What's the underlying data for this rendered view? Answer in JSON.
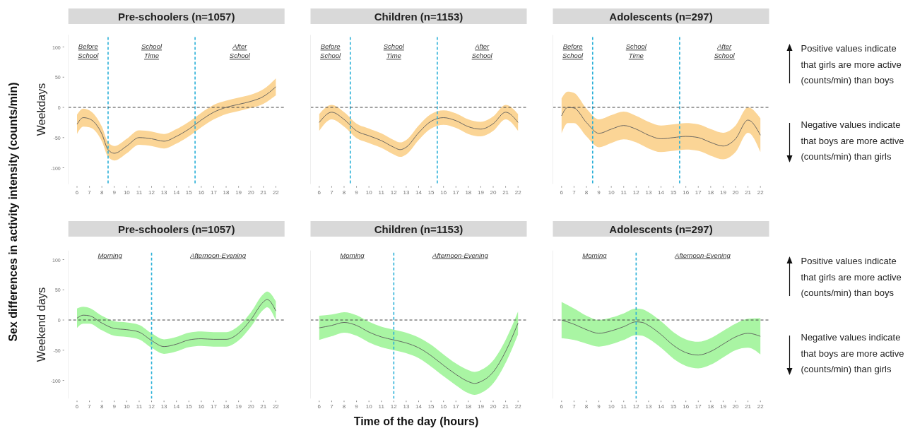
{
  "chart_data": [
    {
      "type": "line",
      "title": "Pre-schoolers (n=1057)",
      "ylabel": "Weekdays",
      "xlim": [
        5.3,
        22.7
      ],
      "ylim": [
        -127,
        120
      ],
      "xticks": [
        6,
        7,
        8,
        9,
        10,
        11,
        12,
        13,
        14,
        15,
        16,
        17,
        18,
        19,
        20,
        21,
        22
      ],
      "yticks": [
        100,
        50,
        0,
        -50,
        -100
      ],
      "x": [
        6,
        6.5,
        7,
        8,
        8.5,
        9,
        10,
        11,
        12,
        13,
        14,
        15,
        16,
        17,
        18,
        19,
        20,
        21,
        22
      ],
      "series": [
        {
          "color": "#5a5a5a",
          "values": [
            -28,
            -17,
            -19,
            -44,
            -70,
            -76,
            -64,
            -50,
            -52,
            -56,
            -48,
            -36,
            -21,
            -8,
            0,
            5,
            10,
            18,
            34
          ],
          "lower": [
            -44,
            -32,
            -33,
            -56,
            -82,
            -88,
            -76,
            -62,
            -64,
            -68,
            -60,
            -48,
            -33,
            -20,
            -11,
            -6,
            -1,
            6,
            20
          ],
          "upper": [
            -12,
            -2,
            -5,
            -32,
            -58,
            -64,
            -52,
            -38,
            -40,
            -44,
            -36,
            -24,
            -9,
            4,
            11,
            16,
            21,
            30,
            48
          ]
        }
      ],
      "ref_lines": [
        {
          "axis": "x",
          "value": 8.5,
          "color": "#29b0d8",
          "line_style": "dashed"
        },
        {
          "axis": "x",
          "value": 15.5,
          "color": "#29b0d8",
          "line_style": "dashed"
        },
        {
          "axis": "y",
          "value": 0,
          "color": "#444444",
          "line_style": "dashed"
        }
      ],
      "annotations": [
        "Before School",
        "School Time",
        "After School",
        "Sex differences in activity intensity (counts/min)",
        "Time of the day (hours)"
      ]
    },
    {
      "type": "line",
      "title": "Children (n=1153)",
      "xlim": [
        5.3,
        22.7
      ],
      "ylim": [
        -127,
        120
      ],
      "xticks": [
        6,
        7,
        8,
        9,
        10,
        11,
        12,
        13,
        14,
        15,
        16,
        17,
        18,
        19,
        20,
        21,
        22
      ],
      "tick_labels": "x",
      "x": [
        6,
        7,
        8,
        9,
        10,
        11,
        12,
        12.5,
        13,
        14,
        15,
        16,
        17,
        18,
        19,
        20,
        21,
        22
      ],
      "series": [
        {
          "color": "#5a5a5a",
          "values": [
            -25,
            -8,
            -20,
            -39,
            -47,
            -55,
            -66,
            -70,
            -66,
            -42,
            -23,
            -17,
            -22,
            -32,
            -36,
            -27,
            -8,
            -25
          ],
          "lower": [
            -39,
            -20,
            -32,
            -51,
            -59,
            -67,
            -78,
            -82,
            -78,
            -54,
            -35,
            -29,
            -34,
            -44,
            -48,
            -39,
            -20,
            -39
          ],
          "upper": [
            -11,
            4,
            -8,
            -27,
            -35,
            -43,
            -54,
            -58,
            -54,
            -30,
            -11,
            -5,
            -10,
            -20,
            -24,
            -15,
            4,
            -11
          ]
        }
      ],
      "ref_lines": [
        {
          "axis": "x",
          "value": 8.5,
          "color": "#29b0d8",
          "line_style": "dashed"
        },
        {
          "axis": "x",
          "value": 15.5,
          "color": "#29b0d8",
          "line_style": "dashed"
        },
        {
          "axis": "y",
          "value": 0,
          "color": "#444444",
          "line_style": "dashed"
        }
      ],
      "annotations": [
        "Before School",
        "School Time",
        "After School"
      ]
    },
    {
      "type": "line",
      "title": "Adolescents (n=297)",
      "xlim": [
        5.3,
        22.7
      ],
      "ylim": [
        -127,
        120
      ],
      "xticks": [
        6,
        7,
        8,
        9,
        10,
        11,
        12,
        13,
        14,
        15,
        16,
        17,
        18,
        19,
        20,
        21,
        22
      ],
      "tick_labels": "x",
      "x": [
        6,
        6.5,
        7,
        8,
        9,
        10,
        11,
        12,
        13,
        14,
        15,
        16,
        17,
        18,
        19,
        20,
        21,
        22
      ],
      "series": [
        {
          "color": "#5a5a5a",
          "values": [
            -14,
            0,
            -1,
            -25,
            -43,
            -36,
            -30,
            -36,
            -46,
            -52,
            -50,
            -48,
            -50,
            -58,
            -64,
            -52,
            -21,
            -46
          ],
          "lower": [
            -43,
            -26,
            -26,
            -48,
            -66,
            -59,
            -53,
            -58,
            -68,
            -74,
            -72,
            -70,
            -72,
            -80,
            -86,
            -74,
            -42,
            -74
          ],
          "upper": [
            15,
            26,
            24,
            -2,
            -20,
            -13,
            -7,
            -14,
            -24,
            -30,
            -28,
            -26,
            -28,
            -36,
            -42,
            -30,
            0,
            -18
          ]
        }
      ],
      "ref_lines": [
        {
          "axis": "x",
          "value": 8.5,
          "color": "#29b0d8",
          "line_style": "dashed"
        },
        {
          "axis": "x",
          "value": 15.5,
          "color": "#29b0d8",
          "line_style": "dashed"
        },
        {
          "axis": "y",
          "value": 0,
          "color": "#444444",
          "line_style": "dashed"
        }
      ],
      "annotations": [
        "Before School",
        "School Time",
        "After School",
        "Positive values indicate that girls are more active (counts/min) than boys",
        "Negative values indicate that boys are more active (counts/min) than girls"
      ]
    },
    {
      "type": "line",
      "title": "Pre-schoolers (n=1057)",
      "ylabel": "Weekend days",
      "xlim": [
        5.3,
        22.7
      ],
      "ylim": [
        -130,
        115
      ],
      "xticks": [
        6,
        7,
        8,
        9,
        10,
        11,
        12,
        13,
        14,
        15,
        16,
        17,
        18,
        19,
        20,
        21,
        22
      ],
      "yticks": [
        100,
        50,
        0,
        -50,
        -100
      ],
      "x": [
        6,
        6.5,
        7,
        8,
        9,
        10,
        11,
        12,
        13,
        14,
        15,
        16,
        17,
        18,
        19,
        20,
        21,
        21.3,
        22
      ],
      "series": [
        {
          "color": "#5a5a5a",
          "values": [
            3,
            8,
            7,
            -5,
            -14,
            -16,
            -20,
            -34,
            -44,
            -40,
            -33,
            -31,
            -32,
            -32,
            -22,
            1,
            30,
            34,
            15
          ],
          "lower": [
            -13,
            -6,
            -6,
            -17,
            -26,
            -28,
            -32,
            -46,
            -56,
            -52,
            -45,
            -43,
            -44,
            -44,
            -34,
            -11,
            17,
            21,
            -1
          ],
          "upper": [
            19,
            22,
            20,
            7,
            -2,
            -4,
            -8,
            -22,
            -32,
            -28,
            -21,
            -19,
            -20,
            -20,
            -10,
            13,
            43,
            47,
            31
          ]
        }
      ],
      "ref_lines": [
        {
          "axis": "x",
          "value": 12,
          "color": "#29b0d8",
          "line_style": "dashed"
        },
        {
          "axis": "y",
          "value": 0,
          "color": "#444444",
          "line_style": "dashed"
        }
      ],
      "annotations": [
        "Morning",
        "Afternoon-Evening"
      ]
    },
    {
      "type": "line",
      "title": "Children (n=1153)",
      "xlim": [
        5.3,
        22.7
      ],
      "ylim": [
        -130,
        115
      ],
      "xticks": [
        6,
        7,
        8,
        9,
        10,
        11,
        12,
        13,
        14,
        15,
        16,
        17,
        18,
        19,
        20,
        21,
        22
      ],
      "tick_labels": "x",
      "x": [
        6,
        7,
        8,
        9,
        10,
        11,
        12,
        13,
        14,
        15,
        16,
        17,
        18,
        18.5,
        19,
        20,
        21,
        22
      ],
      "series": [
        {
          "color": "#5a5a5a",
          "values": [
            -13,
            -9,
            -4,
            -9,
            -20,
            -28,
            -33,
            -38,
            -46,
            -59,
            -75,
            -90,
            -102,
            -105,
            -102,
            -86,
            -52,
            -5
          ],
          "lower": [
            -33,
            -27,
            -21,
            -26,
            -37,
            -45,
            -50,
            -55,
            -63,
            -77,
            -93,
            -108,
            -121,
            -124,
            -121,
            -105,
            -71,
            -24
          ],
          "upper": [
            7,
            9,
            13,
            8,
            -3,
            -11,
            -16,
            -21,
            -29,
            -41,
            -57,
            -72,
            -83,
            -86,
            -83,
            -67,
            -33,
            14
          ]
        }
      ],
      "ref_lines": [
        {
          "axis": "x",
          "value": 12,
          "color": "#29b0d8",
          "line_style": "dashed"
        },
        {
          "axis": "y",
          "value": 0,
          "color": "#444444",
          "line_style": "dashed"
        }
      ],
      "annotations": [
        "Morning",
        "Afternoon-Evening"
      ]
    },
    {
      "type": "line",
      "title": "Adolescents (n=297)",
      "xlim": [
        5.3,
        22.7
      ],
      "ylim": [
        -130,
        115
      ],
      "xticks": [
        6,
        7,
        8,
        9,
        10,
        11,
        12,
        13,
        14,
        15,
        16,
        17,
        18,
        19,
        20,
        21,
        22
      ],
      "tick_labels": "x",
      "x": [
        6,
        7,
        8,
        9,
        10,
        11,
        12,
        12.5,
        13,
        14,
        15,
        16,
        17,
        18,
        19,
        20,
        21,
        22
      ],
      "series": [
        {
          "color": "#5a5a5a",
          "values": [
            0,
            -7,
            -16,
            -22,
            -18,
            -11,
            -3,
            -4,
            -9,
            -24,
            -42,
            -54,
            -58,
            -52,
            -40,
            -28,
            -22,
            -27
          ],
          "lower": [
            -30,
            -33,
            -39,
            -44,
            -40,
            -33,
            -25,
            -26,
            -31,
            -46,
            -64,
            -76,
            -80,
            -74,
            -62,
            -50,
            -46,
            -57
          ],
          "upper": [
            30,
            19,
            7,
            0,
            4,
            11,
            19,
            18,
            13,
            -2,
            -20,
            -32,
            -36,
            -30,
            -18,
            -6,
            2,
            3
          ]
        }
      ],
      "ref_lines": [
        {
          "axis": "x",
          "value": 12,
          "color": "#29b0d8",
          "line_style": "dashed"
        },
        {
          "axis": "y",
          "value": 0,
          "color": "#444444",
          "line_style": "dashed"
        }
      ],
      "annotations": [
        "Morning",
        "Afternoon-Evening",
        "Positive values indicate that girls are more active (counts/min) than boys",
        "Negative values indicate that boys are more active (counts/min) than girls"
      ]
    }
  ]
}
